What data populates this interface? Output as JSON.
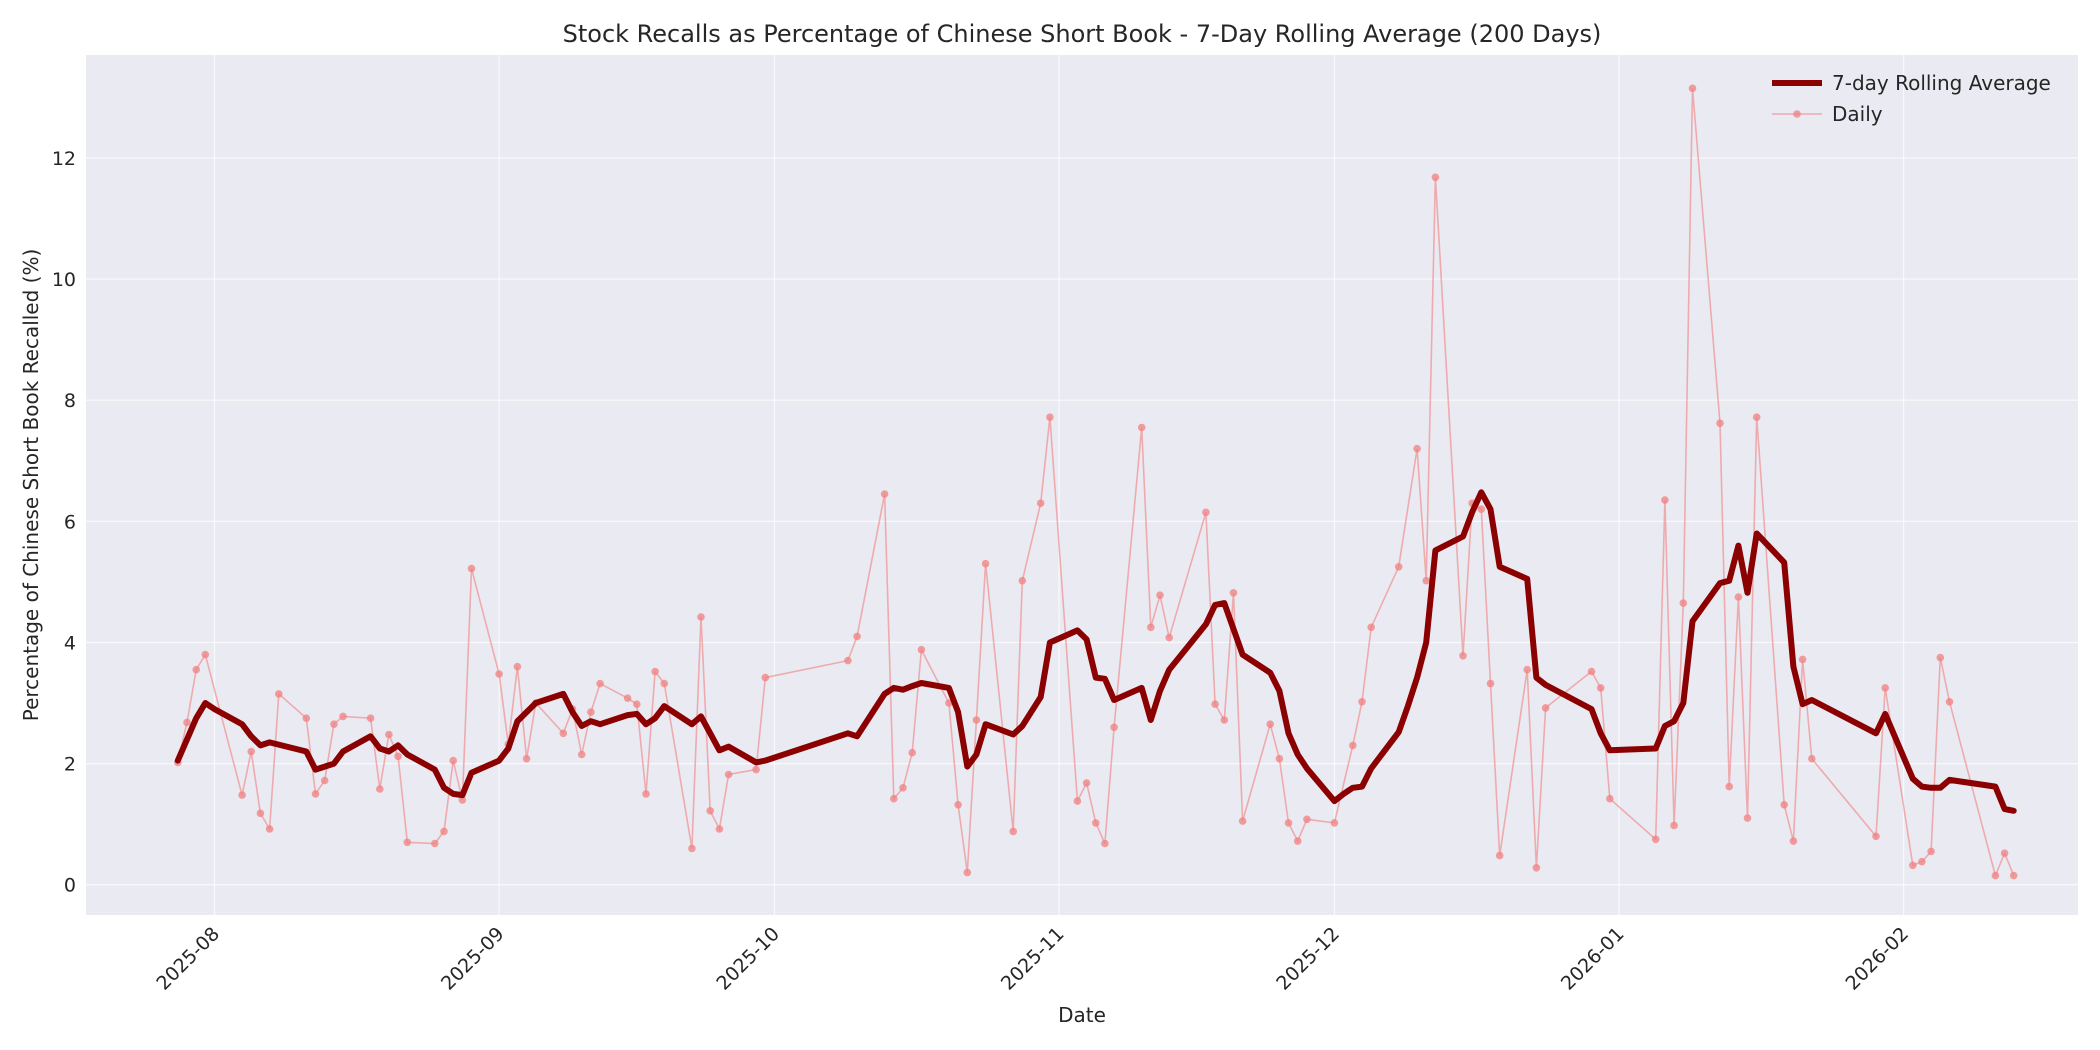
{
  "chart_data": {
    "type": "line",
    "title": "Stock Recalls as Percentage of Chinese Short Book - 7-Day Rolling Average (200 Days)",
    "xlabel": "Date",
    "ylabel": "Percentage of Chinese Short Book Recalled (%)",
    "xlim": [
      "2025-07-18",
      "2026-02-20"
    ],
    "ylim": [
      -0.5,
      13.7
    ],
    "yticks": [
      0,
      2,
      4,
      6,
      8,
      10,
      12
    ],
    "xticks": [
      "2025-08-01",
      "2025-09-01",
      "2025-10-01",
      "2025-11-01",
      "2025-12-01",
      "2026-01-01",
      "2026-02-01"
    ],
    "xtick_labels": [
      "2025-08",
      "2025-09",
      "2025-10",
      "2025-11",
      "2025-12",
      "2026-01",
      "2026-02"
    ],
    "grid": true,
    "legend_position": "top-right",
    "series": [
      {
        "name": "7-day Rolling Average",
        "color": "#8b0000",
        "style": "thick-line",
        "points": [
          [
            "2025-07-28",
            2.05
          ],
          [
            "2025-07-29",
            2.4
          ],
          [
            "2025-07-30",
            2.75
          ],
          [
            "2025-07-31",
            3.0
          ],
          [
            "2025-08-01",
            2.9
          ],
          [
            "2025-08-04",
            2.65
          ],
          [
            "2025-08-05",
            2.45
          ],
          [
            "2025-08-06",
            2.3
          ],
          [
            "2025-08-07",
            2.35
          ],
          [
            "2025-08-11",
            2.2
          ],
          [
            "2025-08-12",
            1.9
          ],
          [
            "2025-08-13",
            1.95
          ],
          [
            "2025-08-14",
            2.0
          ],
          [
            "2025-08-15",
            2.2
          ],
          [
            "2025-08-18",
            2.45
          ],
          [
            "2025-08-19",
            2.25
          ],
          [
            "2025-08-20",
            2.2
          ],
          [
            "2025-08-21",
            2.3
          ],
          [
            "2025-08-22",
            2.15
          ],
          [
            "2025-08-25",
            1.9
          ],
          [
            "2025-08-26",
            1.6
          ],
          [
            "2025-08-27",
            1.5
          ],
          [
            "2025-08-28",
            1.48
          ],
          [
            "2025-08-29",
            1.85
          ],
          [
            "2025-09-01",
            2.05
          ],
          [
            "2025-09-02",
            2.25
          ],
          [
            "2025-09-03",
            2.7
          ],
          [
            "2025-09-04",
            2.85
          ],
          [
            "2025-09-05",
            3.0
          ],
          [
            "2025-09-08",
            3.15
          ],
          [
            "2025-09-09",
            2.85
          ],
          [
            "2025-09-10",
            2.62
          ],
          [
            "2025-09-11",
            2.7
          ],
          [
            "2025-09-12",
            2.65
          ],
          [
            "2025-09-15",
            2.8
          ],
          [
            "2025-09-16",
            2.82
          ],
          [
            "2025-09-17",
            2.65
          ],
          [
            "2025-09-18",
            2.75
          ],
          [
            "2025-09-19",
            2.95
          ],
          [
            "2025-09-22",
            2.65
          ],
          [
            "2025-09-23",
            2.78
          ],
          [
            "2025-09-24",
            2.5
          ],
          [
            "2025-09-25",
            2.22
          ],
          [
            "2025-09-26",
            2.28
          ],
          [
            "2025-09-29",
            2.02
          ],
          [
            "2025-09-30",
            2.05
          ],
          [
            "2025-10-09",
            2.5
          ],
          [
            "2025-10-10",
            2.45
          ],
          [
            "2025-10-13",
            3.15
          ],
          [
            "2025-10-14",
            3.25
          ],
          [
            "2025-10-15",
            3.22
          ],
          [
            "2025-10-16",
            3.28
          ],
          [
            "2025-10-17",
            3.33
          ],
          [
            "2025-10-20",
            3.25
          ],
          [
            "2025-10-21",
            2.85
          ],
          [
            "2025-10-22",
            1.95
          ],
          [
            "2025-10-23",
            2.15
          ],
          [
            "2025-10-24",
            2.65
          ],
          [
            "2025-10-27",
            2.48
          ],
          [
            "2025-10-28",
            2.62
          ],
          [
            "2025-10-30",
            3.1
          ],
          [
            "2025-10-31",
            4.0
          ],
          [
            "2025-11-03",
            4.2
          ],
          [
            "2025-11-04",
            4.05
          ],
          [
            "2025-11-05",
            3.42
          ],
          [
            "2025-11-06",
            3.4
          ],
          [
            "2025-11-07",
            3.05
          ],
          [
            "2025-11-10",
            3.25
          ],
          [
            "2025-11-11",
            2.72
          ],
          [
            "2025-11-12",
            3.2
          ],
          [
            "2025-11-13",
            3.55
          ],
          [
            "2025-11-17",
            4.3
          ],
          [
            "2025-11-18",
            4.62
          ],
          [
            "2025-11-19",
            4.65
          ],
          [
            "2025-11-21",
            3.8
          ],
          [
            "2025-11-24",
            3.5
          ],
          [
            "2025-11-25",
            3.2
          ],
          [
            "2025-11-26",
            2.5
          ],
          [
            "2025-11-27",
            2.15
          ],
          [
            "2025-11-28",
            1.92
          ],
          [
            "2025-12-01",
            1.38
          ],
          [
            "2025-12-02",
            1.5
          ],
          [
            "2025-12-03",
            1.6
          ],
          [
            "2025-12-04",
            1.62
          ],
          [
            "2025-12-05",
            1.92
          ],
          [
            "2025-12-08",
            2.52
          ],
          [
            "2025-12-09",
            2.95
          ],
          [
            "2025-12-10",
            3.42
          ],
          [
            "2025-12-11",
            4.0
          ],
          [
            "2025-12-12",
            5.52
          ],
          [
            "2025-12-15",
            5.75
          ],
          [
            "2025-12-16",
            6.15
          ],
          [
            "2025-12-17",
            6.48
          ],
          [
            "2025-12-18",
            6.2
          ],
          [
            "2025-12-19",
            5.25
          ],
          [
            "2025-12-22",
            5.05
          ],
          [
            "2025-12-23",
            3.42
          ],
          [
            "2025-12-24",
            3.3
          ],
          [
            "2025-12-29",
            2.9
          ],
          [
            "2025-12-30",
            2.5
          ],
          [
            "2025-12-31",
            2.22
          ],
          [
            "2026-01-05",
            2.25
          ],
          [
            "2026-01-06",
            2.62
          ],
          [
            "2026-01-07",
            2.7
          ],
          [
            "2026-01-08",
            3.0
          ],
          [
            "2026-01-09",
            4.35
          ],
          [
            "2026-01-12",
            4.98
          ],
          [
            "2026-01-13",
            5.02
          ],
          [
            "2026-01-14",
            5.6
          ],
          [
            "2026-01-15",
            4.82
          ],
          [
            "2026-01-16",
            5.8
          ],
          [
            "2026-01-19",
            5.32
          ],
          [
            "2026-01-20",
            3.6
          ],
          [
            "2026-01-21",
            2.98
          ],
          [
            "2026-01-22",
            3.05
          ],
          [
            "2026-01-29",
            2.5
          ],
          [
            "2026-01-30",
            2.82
          ],
          [
            "2026-02-02",
            1.75
          ],
          [
            "2026-02-03",
            1.62
          ],
          [
            "2026-02-04",
            1.6
          ],
          [
            "2026-02-05",
            1.6
          ],
          [
            "2026-02-06",
            1.73
          ],
          [
            "2026-02-11",
            1.62
          ],
          [
            "2026-02-12",
            1.25
          ],
          [
            "2026-02-13",
            1.22
          ]
        ]
      },
      {
        "name": "Daily",
        "color": "#f08080",
        "style": "thin-line-with-markers",
        "points": [
          [
            "2025-07-28",
            2.02
          ],
          [
            "2025-07-29",
            2.68
          ],
          [
            "2025-07-30",
            3.55
          ],
          [
            "2025-07-31",
            3.8
          ],
          [
            "2025-08-04",
            1.48
          ],
          [
            "2025-08-05",
            2.2
          ],
          [
            "2025-08-06",
            1.18
          ],
          [
            "2025-08-07",
            0.92
          ],
          [
            "2025-08-08",
            3.15
          ],
          [
            "2025-08-11",
            2.75
          ],
          [
            "2025-08-12",
            1.5
          ],
          [
            "2025-08-13",
            1.72
          ],
          [
            "2025-08-14",
            2.65
          ],
          [
            "2025-08-15",
            2.78
          ],
          [
            "2025-08-18",
            2.75
          ],
          [
            "2025-08-19",
            1.58
          ],
          [
            "2025-08-20",
            2.48
          ],
          [
            "2025-08-21",
            2.12
          ],
          [
            "2025-08-22",
            0.7
          ],
          [
            "2025-08-25",
            0.68
          ],
          [
            "2025-08-26",
            0.88
          ],
          [
            "2025-08-27",
            2.05
          ],
          [
            "2025-08-28",
            1.4
          ],
          [
            "2025-08-29",
            5.22
          ],
          [
            "2025-09-01",
            3.48
          ],
          [
            "2025-09-02",
            2.32
          ],
          [
            "2025-09-03",
            3.6
          ],
          [
            "2025-09-04",
            2.08
          ],
          [
            "2025-09-05",
            3.0
          ],
          [
            "2025-09-08",
            2.5
          ],
          [
            "2025-09-09",
            2.9
          ],
          [
            "2025-09-10",
            2.15
          ],
          [
            "2025-09-11",
            2.85
          ],
          [
            "2025-09-12",
            3.32
          ],
          [
            "2025-09-15",
            3.08
          ],
          [
            "2025-09-16",
            2.98
          ],
          [
            "2025-09-17",
            1.5
          ],
          [
            "2025-09-18",
            3.52
          ],
          [
            "2025-09-19",
            3.32
          ],
          [
            "2025-09-22",
            0.6
          ],
          [
            "2025-09-23",
            4.42
          ],
          [
            "2025-09-24",
            1.22
          ],
          [
            "2025-09-25",
            0.92
          ],
          [
            "2025-09-26",
            1.82
          ],
          [
            "2025-09-29",
            1.9
          ],
          [
            "2025-09-30",
            3.42
          ],
          [
            "2025-10-09",
            3.7
          ],
          [
            "2025-10-10",
            4.1
          ],
          [
            "2025-10-13",
            6.45
          ],
          [
            "2025-10-14",
            1.42
          ],
          [
            "2025-10-15",
            1.6
          ],
          [
            "2025-10-16",
            2.18
          ],
          [
            "2025-10-17",
            3.88
          ],
          [
            "2025-10-20",
            3.0
          ],
          [
            "2025-10-21",
            1.32
          ],
          [
            "2025-10-22",
            0.2
          ],
          [
            "2025-10-23",
            2.72
          ],
          [
            "2025-10-24",
            5.3
          ],
          [
            "2025-10-27",
            0.88
          ],
          [
            "2025-10-28",
            5.02
          ],
          [
            "2025-10-30",
            6.3
          ],
          [
            "2025-10-31",
            7.72
          ],
          [
            "2025-11-03",
            1.38
          ],
          [
            "2025-11-04",
            1.68
          ],
          [
            "2025-11-05",
            1.02
          ],
          [
            "2025-11-06",
            0.68
          ],
          [
            "2025-11-07",
            2.6
          ],
          [
            "2025-11-10",
            7.55
          ],
          [
            "2025-11-11",
            4.25
          ],
          [
            "2025-11-12",
            4.78
          ],
          [
            "2025-11-13",
            4.08
          ],
          [
            "2025-11-17",
            6.15
          ],
          [
            "2025-11-18",
            2.98
          ],
          [
            "2025-11-19",
            2.72
          ],
          [
            "2025-11-20",
            4.82
          ],
          [
            "2025-11-21",
            1.05
          ],
          [
            "2025-11-24",
            2.65
          ],
          [
            "2025-11-25",
            2.08
          ],
          [
            "2025-11-26",
            1.02
          ],
          [
            "2025-11-27",
            0.72
          ],
          [
            "2025-11-28",
            1.08
          ],
          [
            "2025-12-01",
            1.02
          ],
          [
            "2025-12-03",
            2.3
          ],
          [
            "2025-12-04",
            3.02
          ],
          [
            "2025-12-05",
            4.25
          ],
          [
            "2025-12-08",
            5.25
          ],
          [
            "2025-12-10",
            7.2
          ],
          [
            "2025-12-11",
            5.02
          ],
          [
            "2025-12-12",
            11.68
          ],
          [
            "2025-12-15",
            3.78
          ],
          [
            "2025-12-16",
            6.3
          ],
          [
            "2025-12-17",
            6.2
          ],
          [
            "2025-12-18",
            3.32
          ],
          [
            "2025-12-19",
            0.48
          ],
          [
            "2025-12-22",
            3.55
          ],
          [
            "2025-12-23",
            0.28
          ],
          [
            "2025-12-24",
            2.92
          ],
          [
            "2025-12-29",
            3.52
          ],
          [
            "2025-12-30",
            3.25
          ],
          [
            "2025-12-31",
            1.42
          ],
          [
            "2026-01-05",
            0.75
          ],
          [
            "2026-01-06",
            6.35
          ],
          [
            "2026-01-07",
            0.98
          ],
          [
            "2026-01-08",
            4.65
          ],
          [
            "2026-01-09",
            13.15
          ],
          [
            "2026-01-12",
            7.62
          ],
          [
            "2026-01-13",
            1.62
          ],
          [
            "2026-01-14",
            4.75
          ],
          [
            "2026-01-15",
            1.1
          ],
          [
            "2026-01-16",
            7.72
          ],
          [
            "2026-01-19",
            1.32
          ],
          [
            "2026-01-20",
            0.72
          ],
          [
            "2026-01-21",
            3.72
          ],
          [
            "2026-01-22",
            2.08
          ],
          [
            "2026-01-29",
            0.8
          ],
          [
            "2026-01-30",
            3.25
          ],
          [
            "2026-02-02",
            0.32
          ],
          [
            "2026-02-03",
            0.38
          ],
          [
            "2026-02-04",
            0.55
          ],
          [
            "2026-02-05",
            3.75
          ],
          [
            "2026-02-06",
            3.02
          ],
          [
            "2026-02-11",
            0.15
          ],
          [
            "2026-02-12",
            0.52
          ],
          [
            "2026-02-13",
            0.15
          ]
        ]
      }
    ]
  }
}
